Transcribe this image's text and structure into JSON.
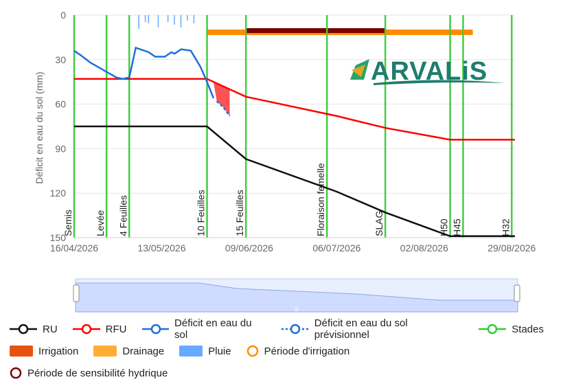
{
  "brand": {
    "name": "ARVALIS"
  },
  "chart_data": {
    "type": "line",
    "ylabel": "Déficit en eau du sol (mm)",
    "y_inverted": true,
    "ylim": [
      0,
      150
    ],
    "y_ticks": [
      0,
      30,
      60,
      90,
      120,
      150
    ],
    "x_ticks": [
      "16/04/2026",
      "13/05/2026",
      "09/06/2026",
      "06/07/2026",
      "02/08/2026",
      "29/08/2026"
    ],
    "x_range": [
      "16/04/2026",
      "30/08/2026"
    ],
    "grid": true,
    "stades": [
      {
        "label": "Semis",
        "date": "16/04/2026"
      },
      {
        "label": "Levée",
        "date": "26/04/2026"
      },
      {
        "label": "4 Feuilles",
        "date": "03/05/2026"
      },
      {
        "label": "10 Feuilles",
        "date": "27/05/2026"
      },
      {
        "label": "15 Feuilles",
        "date": "08/06/2026"
      },
      {
        "label": "Floraison femelle",
        "date": "03/07/2026"
      },
      {
        "label": "SLAG",
        "date": "21/07/2026"
      },
      {
        "label": "H50",
        "date": "10/08/2026"
      },
      {
        "label": "H45",
        "date": "14/08/2026"
      },
      {
        "label": "H32",
        "date": "29/08/2026"
      }
    ],
    "series": [
      {
        "name": "RU",
        "color": "#111111",
        "points": [
          [
            "16/04/2026",
            75
          ],
          [
            "27/05/2026",
            75
          ],
          [
            "08/06/2026",
            97
          ],
          [
            "06/07/2026",
            119
          ],
          [
            "21/07/2026",
            133
          ],
          [
            "10/08/2026",
            149
          ],
          [
            "30/08/2026",
            149
          ]
        ]
      },
      {
        "name": "RFU",
        "color": "#ff0000",
        "points": [
          [
            "16/04/2026",
            43
          ],
          [
            "27/05/2026",
            43
          ],
          [
            "08/06/2026",
            55
          ],
          [
            "06/07/2026",
            68
          ],
          [
            "21/07/2026",
            76
          ],
          [
            "10/08/2026",
            84
          ],
          [
            "30/08/2026",
            84
          ]
        ]
      },
      {
        "name": "Déficit en eau du sol",
        "color": "#1e6fd9",
        "points": [
          [
            "16/04/2026",
            24
          ],
          [
            "18/04/2026",
            27
          ],
          [
            "21/04/2026",
            32
          ],
          [
            "25/04/2026",
            37
          ],
          [
            "29/04/2026",
            42
          ],
          [
            "01/05/2026",
            43
          ],
          [
            "03/05/2026",
            42
          ],
          [
            "05/05/2026",
            22
          ],
          [
            "09/05/2026",
            25
          ],
          [
            "11/05/2026",
            28
          ],
          [
            "14/05/2026",
            28
          ],
          [
            "16/05/2026",
            25
          ],
          [
            "17/05/2026",
            26
          ],
          [
            "19/05/2026",
            23
          ],
          [
            "22/05/2026",
            24
          ],
          [
            "25/05/2026",
            35
          ],
          [
            "27/05/2026",
            45
          ],
          [
            "29/05/2026",
            56
          ]
        ]
      },
      {
        "name": "Déficit en eau du sol prévisionnel",
        "color": "#1e6fd9",
        "dashed": true,
        "points": [
          [
            "30/05/2026",
            58
          ],
          [
            "01/06/2026",
            62
          ],
          [
            "03/06/2026",
            68
          ]
        ]
      }
    ],
    "rain_days": [
      "06/05/2026",
      "08/05/2026",
      "09/05/2026",
      "12/05/2026",
      "15/05/2026",
      "17/05/2026",
      "19/05/2026",
      "21/05/2026",
      "23/05/2026"
    ],
    "irrigation_period": {
      "start": "27/05/2026",
      "end": "17/08/2026",
      "color": "#ff8c00"
    },
    "sensitivity_period": {
      "start": "08/06/2026",
      "end": "21/07/2026",
      "color": "#7a0000"
    },
    "stress_area": {
      "start": "29/05/2026",
      "end": "03/06/2026",
      "color": "#ff4040"
    }
  },
  "navigator": {
    "handle_glyph": "|||"
  },
  "legend": [
    [
      {
        "label": "RU",
        "color": "#111111",
        "kind": "line"
      },
      {
        "label": "RFU",
        "color": "#ff0000",
        "kind": "line"
      },
      {
        "label": "Déficit en eau du sol",
        "color": "#1e6fd9",
        "kind": "line"
      },
      {
        "label": "Déficit en eau du sol prévisionnel",
        "color": "#1e6fd9",
        "kind": "dashed"
      },
      {
        "label": "Stades",
        "color": "#33cc33",
        "kind": "line"
      }
    ],
    [
      {
        "label": "Irrigation",
        "color": "#e8520f",
        "kind": "box"
      },
      {
        "label": "Drainage",
        "color": "#ffae33",
        "kind": "box"
      },
      {
        "label": "Pluie",
        "color": "#66aaff",
        "kind": "box"
      },
      {
        "label": "Période d'irrigation",
        "color": "#ff8c00",
        "kind": "circle"
      }
    ],
    [
      {
        "label": "Période de sensibilité hydrique",
        "color": "#7a0000",
        "kind": "circle"
      }
    ]
  ]
}
